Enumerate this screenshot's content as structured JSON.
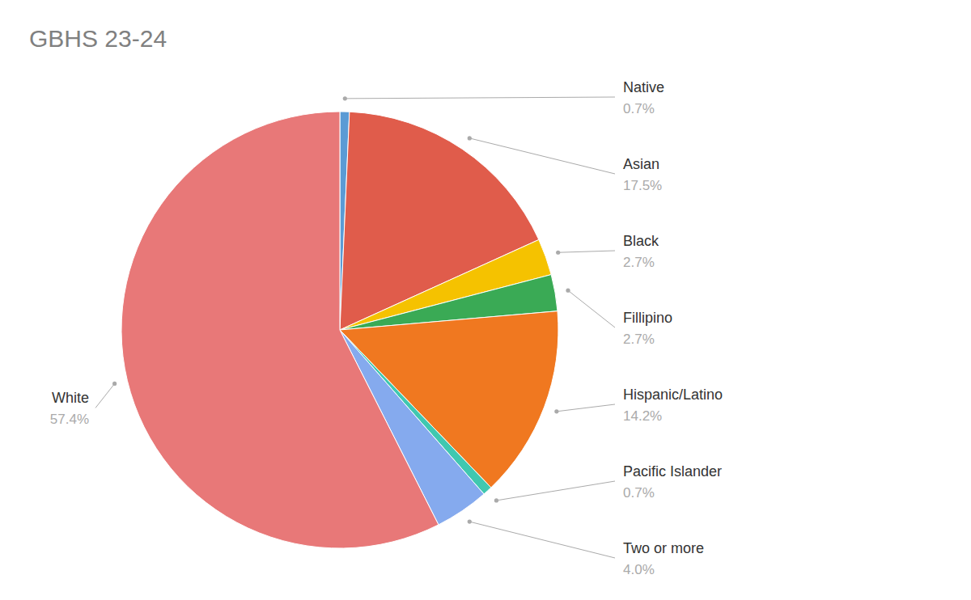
{
  "chart_data": {
    "type": "pie",
    "title": "GBHS 23-24",
    "categories": [
      "Native",
      "Asian",
      "Black",
      "Fillipino",
      "Hispanic/Latino",
      "Pacific Islander",
      "Two or more",
      "White"
    ],
    "values": [
      0.7,
      17.5,
      2.7,
      2.7,
      14.2,
      0.7,
      4.0,
      57.4
    ],
    "value_labels": [
      "0.7%",
      "17.5%",
      "2.7%",
      "2.7%",
      "14.2%",
      "0.7%",
      "4.0%",
      "57.4%"
    ],
    "colors": [
      "#5b9bd5",
      "#e05c4b",
      "#f5c200",
      "#3aaa55",
      "#f07820",
      "#40c8b0",
      "#85aaee",
      "#e87878"
    ],
    "data_labels": true
  }
}
